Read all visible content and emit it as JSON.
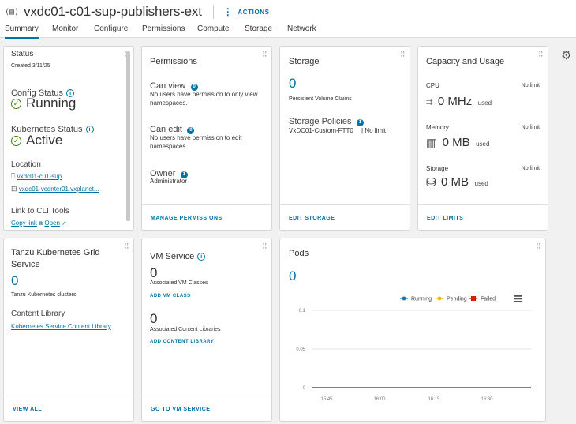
{
  "header": {
    "title": "vxdc01-c01-sup-publishers-ext",
    "actions_label": "ACTIONS",
    "tabs": [
      {
        "label": "Summary",
        "active": true
      },
      {
        "label": "Monitor",
        "active": false
      },
      {
        "label": "Configure",
        "active": false
      },
      {
        "label": "Permissions",
        "active": false
      },
      {
        "label": "Compute",
        "active": false
      },
      {
        "label": "Storage",
        "active": false
      },
      {
        "label": "Network",
        "active": false
      }
    ]
  },
  "status": {
    "title": "Status",
    "created": "Created 3/11/25",
    "config_status_label": "Config Status",
    "config_status_value": "Running",
    "k8s_status_label": "Kubernetes Status",
    "k8s_status_value": "Active",
    "location_label": "Location",
    "location_cluster": "vxdc01-c01-sup",
    "location_vcenter": "vxdc01-vcenter01.vxplanet...",
    "cli_label": "Link to CLI Tools",
    "copy_link": "Copy link",
    "open_link": "Open"
  },
  "permissions": {
    "title": "Permissions",
    "can_view_label": "Can view",
    "can_view_count": "0",
    "can_view_text": "No users have permission to only view namespaces.",
    "can_edit_label": "Can edit",
    "can_edit_count": "0",
    "can_edit_text": "No users have permission to edit namespaces.",
    "owner_label": "Owner",
    "owner_count": "1",
    "owner_value": "Administrator",
    "footer": "MANAGE PERMISSIONS"
  },
  "storage": {
    "title": "Storage",
    "pvc_count": "0",
    "pvc_label": "Persistent Volume Claims",
    "policies_label": "Storage Policies",
    "policies_count": "1",
    "policy_name": "VxDC01-Custom-FTT0",
    "policy_limit": "| No limit",
    "footer": "EDIT STORAGE"
  },
  "capacity": {
    "title": "Capacity and Usage",
    "cpu_label": "CPU",
    "cpu_limit": "No limit",
    "cpu_value": "0 MHz",
    "cpu_unit": "used",
    "memory_label": "Memory",
    "memory_limit": "No limit",
    "memory_value": "0 MB",
    "memory_unit": "used",
    "storage_label": "Storage",
    "storage_limit": "No limit",
    "storage_value": "0 MB",
    "storage_unit": "used",
    "footer": "EDIT LIMITS"
  },
  "tkg": {
    "title": "Tanzu Kubernetes Grid Service",
    "count": "0",
    "clusters_label": "Tanzu Kubernetes clusters",
    "content_library_label": "Content Library",
    "content_library_link": "Kubernetes Service Content Library",
    "footer": "VIEW ALL"
  },
  "vm_service": {
    "title": "VM Service",
    "vm_classes_count": "0",
    "vm_classes_label": "Associated VM Classes",
    "add_vm_class": "ADD VM CLASS",
    "libraries_count": "0",
    "libraries_label": "Associated Content Libraries",
    "add_library": "ADD CONTENT LIBRARY",
    "footer": "GO TO VM SERVICE"
  },
  "pods": {
    "title": "Pods",
    "count": "0"
  },
  "chart_data": {
    "type": "line",
    "title": "",
    "xlabel": "",
    "ylabel": "",
    "x": [
      "15:45",
      "16:00",
      "16:15",
      "16:30"
    ],
    "ylim": [
      0,
      0.1
    ],
    "y_ticks": [
      "0.1",
      "0.05",
      "0"
    ],
    "legend": "top-right",
    "series": [
      {
        "name": "Running",
        "color": "#1b7bb5",
        "values": [
          0,
          0,
          0,
          0
        ]
      },
      {
        "name": "Pending",
        "color": "#f5b800",
        "values": [
          0,
          0,
          0,
          0
        ]
      },
      {
        "name": "Failed",
        "color": "#c92100",
        "values": [
          0,
          0,
          0,
          0
        ]
      }
    ]
  },
  "colors": {
    "accent": "#0072a3",
    "success": "#3c8500",
    "failed": "#c92100"
  }
}
